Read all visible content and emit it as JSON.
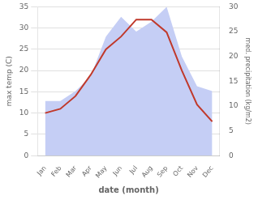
{
  "chart_data": {
    "type": "line",
    "xlabel": "date (month)",
    "ylabel": "max temp (C)",
    "y2label": "med. precipitation (kg/m2)",
    "categories": [
      "Jan",
      "Feb",
      "Mar",
      "Apr",
      "May",
      "Jun",
      "Jul",
      "Aug",
      "Sep",
      "Oct",
      "Nov",
      "Dec"
    ],
    "series": [
      {
        "type": "line",
        "color": "#c0392b",
        "values": [
          10,
          11,
          14,
          19,
          25,
          28,
          32,
          32,
          29,
          20,
          12,
          8
        ]
      },
      {
        "type": "area",
        "color": "#c5cef5",
        "axis": "y2",
        "values": [
          11,
          11,
          13,
          16,
          24,
          28,
          25,
          27,
          30,
          20,
          14,
          13
        ]
      }
    ],
    "ylim": [
      0,
      35
    ],
    "yticks": [
      0,
      5,
      10,
      15,
      20,
      25,
      30,
      35
    ],
    "y2lim": [
      0,
      30
    ],
    "y2ticks": [
      0,
      5,
      10,
      15,
      20,
      25,
      30
    ],
    "grid": true
  }
}
